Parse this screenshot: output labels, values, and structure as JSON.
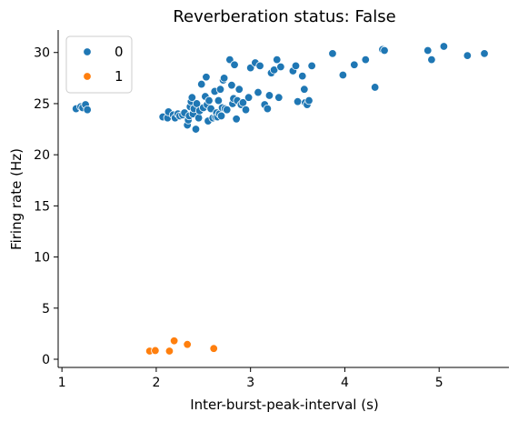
{
  "chart_data": {
    "type": "scatter",
    "title": "Reverberation status: False",
    "xlabel": "Inter-burst-peak-interval (s)",
    "ylabel": "Firing rate (Hz)",
    "xlim": [
      0.96,
      5.74
    ],
    "ylim": [
      -0.8,
      32.2
    ],
    "xticks": [
      "1",
      "2",
      "3",
      "4",
      "5"
    ],
    "yticks": [
      "0",
      "5",
      "10",
      "15",
      "20",
      "25",
      "30"
    ],
    "grid": false,
    "legend": {
      "placement": "top-left"
    },
    "series": [
      {
        "name": "0",
        "color": "#1f77b4",
        "points": [
          [
            1.15,
            24.5
          ],
          [
            1.2,
            24.7
          ],
          [
            1.22,
            24.6
          ],
          [
            1.25,
            24.9
          ],
          [
            1.27,
            24.4
          ],
          [
            2.07,
            23.7
          ],
          [
            2.12,
            23.6
          ],
          [
            2.13,
            24.2
          ],
          [
            2.18,
            23.9
          ],
          [
            2.2,
            23.6
          ],
          [
            2.23,
            24.0
          ],
          [
            2.25,
            23.8
          ],
          [
            2.28,
            23.9
          ],
          [
            2.3,
            24.1
          ],
          [
            2.33,
            22.9
          ],
          [
            2.34,
            23.4
          ],
          [
            2.35,
            23.8
          ],
          [
            2.36,
            24.7
          ],
          [
            2.37,
            25.2
          ],
          [
            2.38,
            25.6
          ],
          [
            2.39,
            24.0
          ],
          [
            2.4,
            24.5
          ],
          [
            2.42,
            22.5
          ],
          [
            2.43,
            25.0
          ],
          [
            2.45,
            23.6
          ],
          [
            2.46,
            24.3
          ],
          [
            2.48,
            26.9
          ],
          [
            2.5,
            24.6
          ],
          [
            2.52,
            25.7
          ],
          [
            2.53,
            27.6
          ],
          [
            2.54,
            24.9
          ],
          [
            2.55,
            23.3
          ],
          [
            2.56,
            25.3
          ],
          [
            2.58,
            24.5
          ],
          [
            2.6,
            23.6
          ],
          [
            2.62,
            26.2
          ],
          [
            2.63,
            23.7
          ],
          [
            2.64,
            24.1
          ],
          [
            2.65,
            23.7
          ],
          [
            2.66,
            25.3
          ],
          [
            2.67,
            24.0
          ],
          [
            2.68,
            26.4
          ],
          [
            2.69,
            23.8
          ],
          [
            2.7,
            24.6
          ],
          [
            2.71,
            27.3
          ],
          [
            2.72,
            27.5
          ],
          [
            2.73,
            24.5
          ],
          [
            2.75,
            24.4
          ],
          [
            2.78,
            29.3
          ],
          [
            2.8,
            26.8
          ],
          [
            2.81,
            25.0
          ],
          [
            2.82,
            25.5
          ],
          [
            2.83,
            28.8
          ],
          [
            2.85,
            23.5
          ],
          [
            2.86,
            25.3
          ],
          [
            2.88,
            26.4
          ],
          [
            2.9,
            24.9
          ],
          [
            2.92,
            25.1
          ],
          [
            2.95,
            24.4
          ],
          [
            2.98,
            25.6
          ],
          [
            3.0,
            28.5
          ],
          [
            3.05,
            29.0
          ],
          [
            3.08,
            26.1
          ],
          [
            3.1,
            28.7
          ],
          [
            3.15,
            24.9
          ],
          [
            3.18,
            24.5
          ],
          [
            3.2,
            25.8
          ],
          [
            3.22,
            28.0
          ],
          [
            3.25,
            28.3
          ],
          [
            3.28,
            29.3
          ],
          [
            3.3,
            25.6
          ],
          [
            3.32,
            28.6
          ],
          [
            3.45,
            28.2
          ],
          [
            3.48,
            28.7
          ],
          [
            3.5,
            25.2
          ],
          [
            3.55,
            27.7
          ],
          [
            3.57,
            26.4
          ],
          [
            3.58,
            25.1
          ],
          [
            3.6,
            24.9
          ],
          [
            3.62,
            25.3
          ],
          [
            3.65,
            28.7
          ],
          [
            3.87,
            29.9
          ],
          [
            3.98,
            27.8
          ],
          [
            4.1,
            28.8
          ],
          [
            4.22,
            29.3
          ],
          [
            4.32,
            26.6
          ],
          [
            4.4,
            30.3
          ],
          [
            4.42,
            30.2
          ],
          [
            4.88,
            30.2
          ],
          [
            4.92,
            29.3
          ],
          [
            5.05,
            30.6
          ],
          [
            5.3,
            29.7
          ],
          [
            5.48,
            29.9
          ]
        ]
      },
      {
        "name": "1",
        "color": "#ff7f0e",
        "points": [
          [
            1.93,
            0.8
          ],
          [
            1.99,
            0.85
          ],
          [
            2.14,
            0.8
          ],
          [
            2.19,
            1.8
          ],
          [
            2.33,
            1.45
          ],
          [
            2.61,
            1.05
          ]
        ]
      }
    ]
  }
}
